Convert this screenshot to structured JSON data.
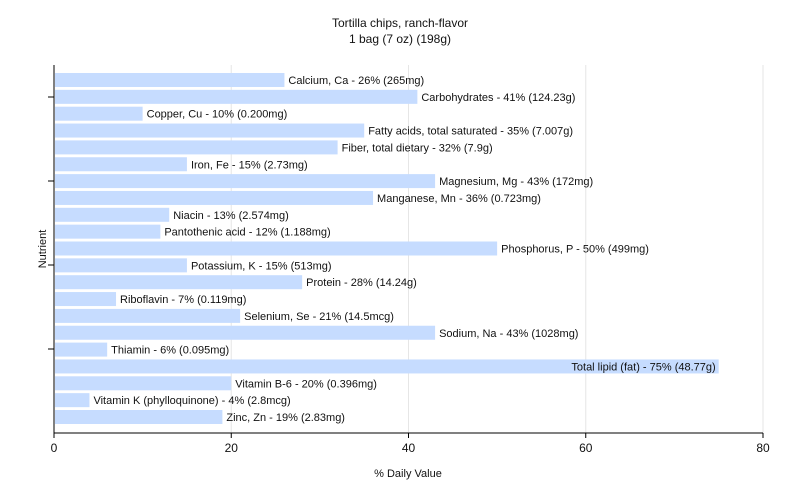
{
  "chart_data": {
    "type": "bar",
    "orientation": "horizontal",
    "title": "Tortilla chips, ranch-flavor",
    "subtitle": "1 bag (7 oz) (198g)",
    "xlabel": "% Daily Value",
    "ylabel": "Nutrient",
    "xlim": [
      0,
      80
    ],
    "xticks": [
      0,
      20,
      40,
      60,
      80
    ],
    "grid": true,
    "bar_color": "#c6dcff",
    "categories": [
      "Calcium, Ca",
      "Carbohydrates",
      "Copper, Cu",
      "Fatty acids, total saturated",
      "Fiber, total dietary",
      "Iron, Fe",
      "Magnesium, Mg",
      "Manganese, Mn",
      "Niacin",
      "Pantothenic acid",
      "Phosphorus, P",
      "Potassium, K",
      "Protein",
      "Riboflavin",
      "Selenium, Se",
      "Sodium, Na",
      "Thiamin",
      "Total lipid (fat)",
      "Vitamin B-6",
      "Vitamin K (phylloquinone)",
      "Zinc, Zn"
    ],
    "values": [
      26,
      41,
      10,
      35,
      32,
      15,
      43,
      36,
      13,
      12,
      50,
      15,
      28,
      7,
      21,
      43,
      6,
      75,
      20,
      4,
      19
    ],
    "labels": [
      "Calcium, Ca - 26% (265mg)",
      "Carbohydrates - 41% (124.23g)",
      "Copper, Cu - 10% (0.200mg)",
      "Fatty acids, total saturated - 35% (7.007g)",
      "Fiber, total dietary - 32% (7.9g)",
      "Iron, Fe - 15% (2.73mg)",
      "Magnesium, Mg - 43% (172mg)",
      "Manganese, Mn - 36% (0.723mg)",
      "Niacin - 13% (2.574mg)",
      "Pantothenic acid - 12% (1.188mg)",
      "Phosphorus, P - 50% (499mg)",
      "Potassium, K - 15% (513mg)",
      "Protein - 28% (14.24g)",
      "Riboflavin - 7% (0.119mg)",
      "Selenium, Se - 21% (14.5mcg)",
      "Sodium, Na - 43% (1028mg)",
      "Thiamin - 6% (0.095mg)",
      "Total lipid (fat) - 75% (48.77g)",
      "Vitamin B-6 - 20% (0.396mg)",
      "Vitamin K (phylloquinone) - 4% (2.8mcg)",
      "Zinc, Zn - 19% (2.83mg)"
    ]
  }
}
